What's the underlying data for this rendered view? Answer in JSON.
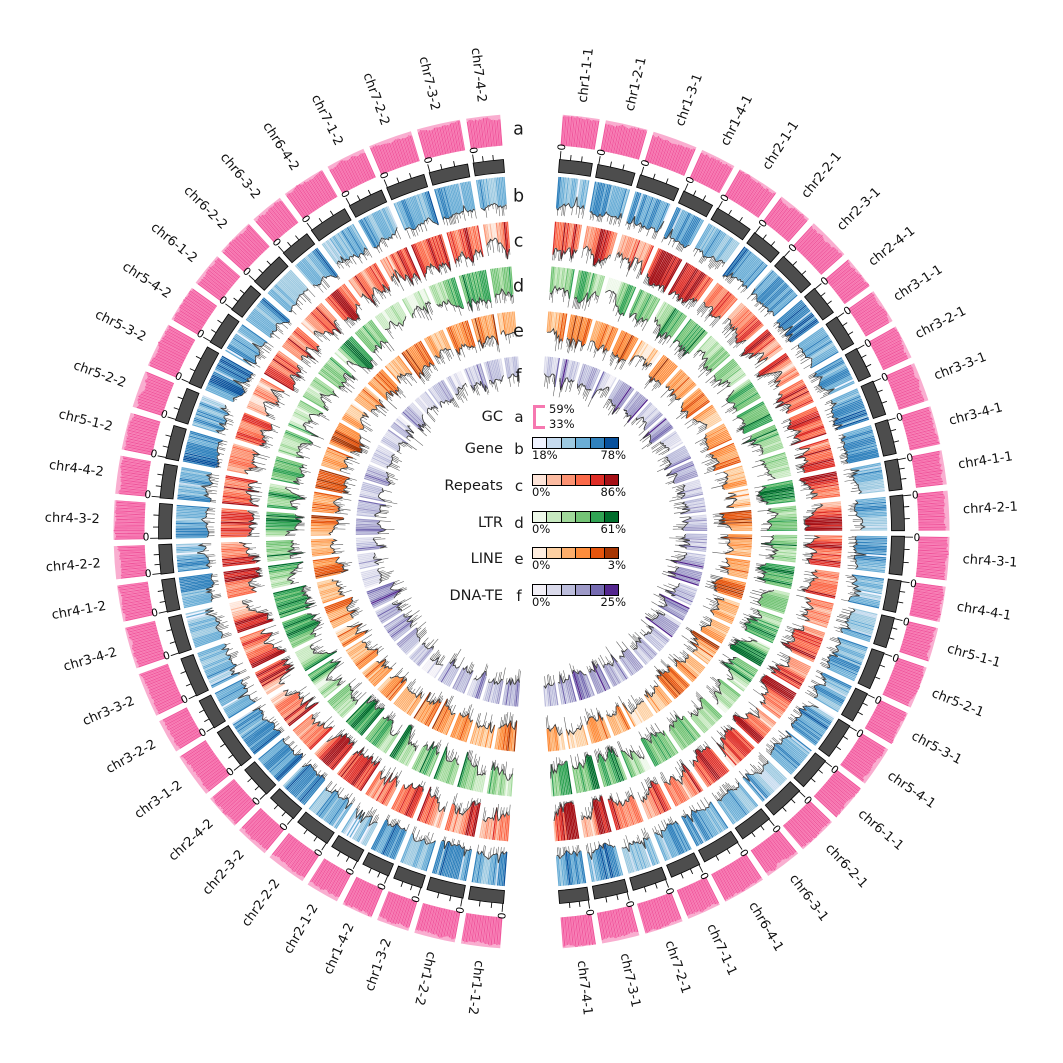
{
  "chart_data": {
    "type": "circos",
    "description": "Circular multi-track genome plot with 56 chromosome-segment sectors and 6 annotation tracks",
    "noise_seed": 11,
    "axis": {
      "zero_label": "0",
      "ring_color": "#4d4d4d",
      "outline_color": "#000000"
    },
    "track_a_color": "#f0549b",
    "track_a_color_alt": "#f76eac",
    "track_a_underlay": "#f9aed0",
    "line_color": "#3a3a3a",
    "rings": [
      {
        "id": "a",
        "name": "GC",
        "kind": "histogram",
        "scale": {
          "max": "59%",
          "min": "33%"
        },
        "bracket_color": "#f678b0"
      },
      {
        "id": "b",
        "name": "Gene",
        "kind": "heatmap-line",
        "scale": {
          "min": "18%",
          "max": "78%"
        },
        "palette": [
          "#eff3ff",
          "#c6dbef",
          "#9ecae1",
          "#6baed6",
          "#3182bd",
          "#08519c"
        ]
      },
      {
        "id": "c",
        "name": "Repeats",
        "kind": "heatmap-line",
        "scale": {
          "min": "0%",
          "max": "86%"
        },
        "palette": [
          "#fee5d9",
          "#fcbba1",
          "#fc9272",
          "#fb6a4a",
          "#de2d26",
          "#a50f15"
        ]
      },
      {
        "id": "d",
        "name": "LTR",
        "kind": "heatmap-line",
        "scale": {
          "min": "0%",
          "max": "61%"
        },
        "palette": [
          "#edf8e9",
          "#c7e9c0",
          "#a1d99b",
          "#74c476",
          "#31a354",
          "#006d2c"
        ]
      },
      {
        "id": "e",
        "name": "LINE",
        "kind": "heatmap-line",
        "scale": {
          "min": "0%",
          "max": "3%"
        },
        "palette": [
          "#feedde",
          "#fdd0a2",
          "#fdae6b",
          "#fd8d3c",
          "#e6550d",
          "#a63603"
        ]
      },
      {
        "id": "f",
        "name": "DNA-TE",
        "kind": "heatmap-line",
        "scale": {
          "min": "0%",
          "max": "25%"
        },
        "palette": [
          "#f2f0f7",
          "#dadaeb",
          "#bcbddc",
          "#9e9ac8",
          "#756bb1",
          "#54278f"
        ]
      }
    ],
    "sectors_right_half_clockwise_from_top": [
      "chr1-1-1",
      "chr1-2-1",
      "chr1-3-1",
      "chr1-4-1",
      "chr2-1-1",
      "chr2-2-1",
      "chr2-3-1",
      "chr2-4-1",
      "chr3-1-1",
      "chr3-2-1",
      "chr3-3-1",
      "chr3-4-1",
      "chr4-1-1",
      "chr4-2-1",
      "chr4-3-1",
      "chr4-4-1",
      "chr5-1-1",
      "chr5-2-1",
      "chr5-3-1",
      "chr5-4-1",
      "chr6-1-1",
      "chr6-2-1",
      "chr6-3-1",
      "chr6-4-1",
      "chr7-1-1",
      "chr7-2-1",
      "chr7-3-1",
      "chr7-4-1"
    ],
    "sectors_left_half_clockwise_from_bottom": [
      "chr1-1-2",
      "chr1-2-2",
      "chr1-3-2",
      "chr1-4-2",
      "chr2-1-2",
      "chr2-2-2",
      "chr2-3-2",
      "chr2-4-2",
      "chr3-1-2",
      "chr3-2-2",
      "chr3-3-2",
      "chr3-4-2",
      "chr4-1-2",
      "chr4-2-2",
      "chr4-3-2",
      "chr4-4-2",
      "chr5-1-2",
      "chr5-2-2",
      "chr5-3-2",
      "chr5-4-2",
      "chr6-1-2",
      "chr6-2-2",
      "chr6-3-2",
      "chr6-4-2",
      "chr7-1-2",
      "chr7-2-2",
      "chr7-3-2",
      "chr7-4-2"
    ]
  }
}
